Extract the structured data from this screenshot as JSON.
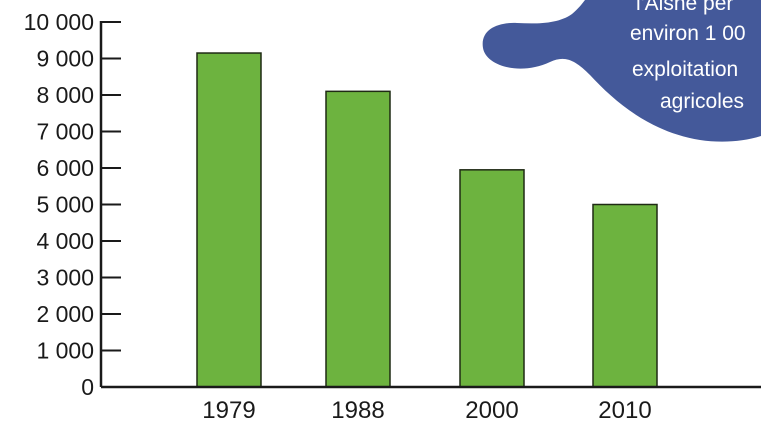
{
  "chart_data": {
    "type": "bar",
    "categories": [
      "1979",
      "1988",
      "2000",
      "2010"
    ],
    "values": [
      9150,
      8100,
      5950,
      5000
    ],
    "ylim": [
      0,
      10000
    ],
    "yticks": [
      0,
      1000,
      2000,
      3000,
      4000,
      5000,
      6000,
      7000,
      8000,
      9000,
      10000
    ],
    "ytick_labels": [
      "0",
      "1 000",
      "2 000",
      "3 000",
      "4 000",
      "5 000",
      "6 000",
      "7 000",
      "8 000",
      "9 000",
      "10 000"
    ],
    "title": "",
    "xlabel": "",
    "ylabel": "",
    "grid": false,
    "legend": "none"
  },
  "colors": {
    "bar_fill": "#6db33f",
    "bar_stroke": "#1f2a14",
    "axis": "#1a1a1a",
    "callout_bg": "#44599a",
    "callout_text": "#ffffff"
  },
  "callout": {
    "lines": [
      "l'Aisne per",
      "environ 1 00",
      "exploitation",
      "agricoles"
    ]
  }
}
